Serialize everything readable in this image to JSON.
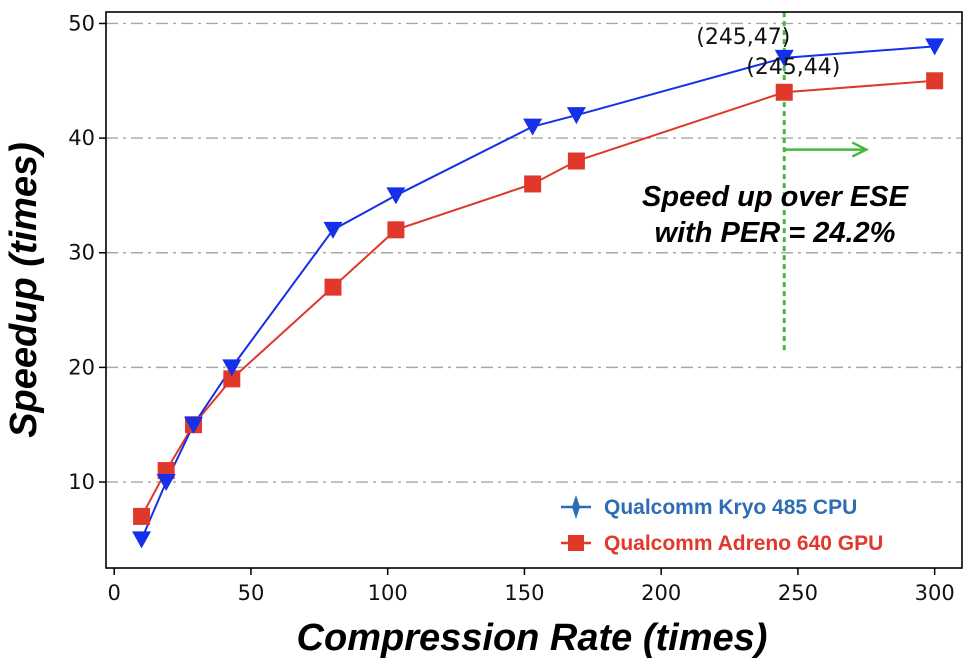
{
  "chart_data": {
    "type": "line",
    "xlabel": "Compression Rate (times)",
    "ylabel": "Speedup (times)",
    "xlim": [
      -3,
      310
    ],
    "ylim": [
      2.5,
      51
    ],
    "xticks": [
      0,
      50,
      100,
      150,
      200,
      250,
      300
    ],
    "yticks": [
      10,
      20,
      30,
      40,
      50
    ],
    "grid": "horizontal dash-dot",
    "series": [
      {
        "name": "Qualcomm Kryo 485 CPU",
        "color": "#1430e8",
        "legend_color": "#2f6db3",
        "marker": "triangle-down",
        "x": [
          10,
          19,
          29,
          43,
          80,
          103,
          153,
          169,
          245,
          300
        ],
        "y": [
          5,
          10,
          15,
          20,
          32,
          35,
          41,
          42,
          47,
          48
        ]
      },
      {
        "name": "Qualcomm Adreno 640 GPU",
        "color": "#e0392b",
        "legend_color": "#e0392b",
        "marker": "square",
        "x": [
          10,
          19,
          29,
          43,
          80,
          103,
          153,
          169,
          245,
          300
        ],
        "y": [
          7,
          11,
          15,
          19,
          27,
          32,
          36,
          38,
          44,
          45
        ]
      }
    ],
    "annotations": [
      {
        "text": "(245,47)",
        "x": 245,
        "y": 47
      },
      {
        "text": "(245,44)",
        "x": 245,
        "y": 44
      }
    ],
    "reference_line": {
      "x": 245,
      "y_from": 21.5,
      "y_to": 51,
      "color": "#44b83a"
    },
    "arrow": {
      "x_from": 245,
      "x_to": 275,
      "y": 39,
      "color": "#44b83a"
    },
    "note_lines": [
      "Speed up over ESE",
      "with PER = 24.2%"
    ],
    "legend_position": "bottom-right"
  }
}
